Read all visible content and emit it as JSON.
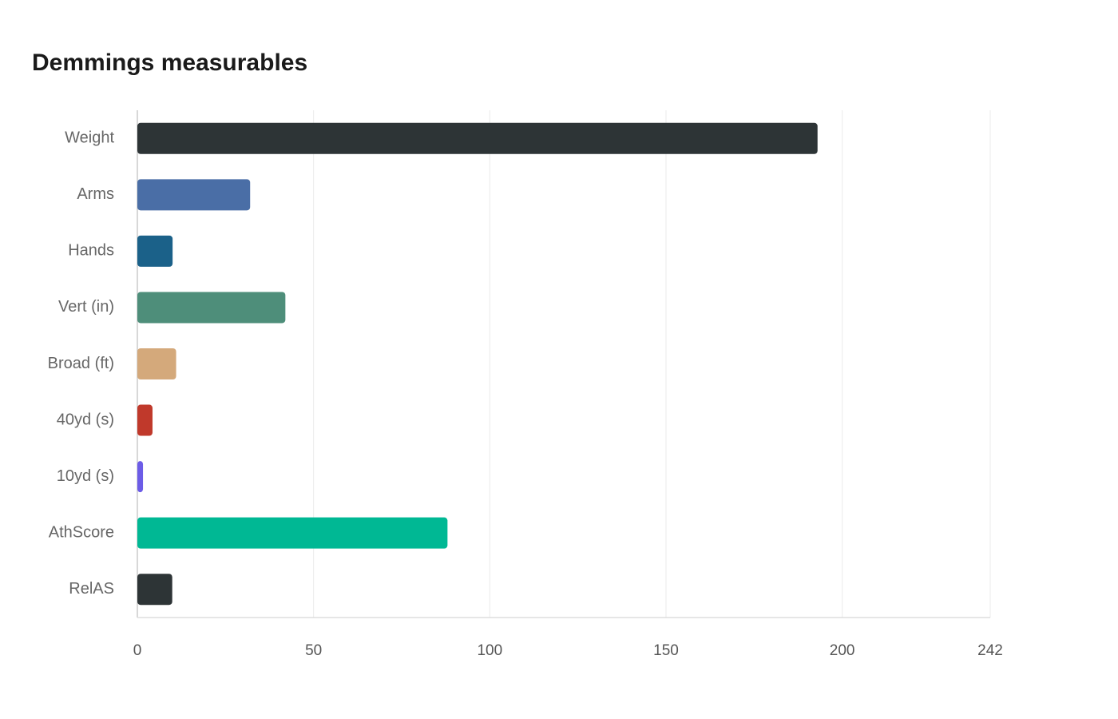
{
  "chart_data": {
    "type": "bar",
    "orientation": "horizontal",
    "title": "Demmings measurables",
    "categories": [
      "Weight",
      "Arms",
      "Hands",
      "Vert (in)",
      "Broad (ft)",
      "40yd (s)",
      "10yd (s)",
      "AthScore",
      "RelAS"
    ],
    "values": [
      193,
      32,
      10,
      42,
      11,
      4.3,
      1.6,
      88,
      9.9
    ],
    "colors": [
      "#2d3436",
      "#4a6ea6",
      "#1b6189",
      "#4e8e7a",
      "#d4a97b",
      "#c0392b",
      "#6c5ce7",
      "#00b894",
      "#2d3436"
    ],
    "xlim": [
      0,
      242
    ],
    "xticks": [
      0,
      50,
      100,
      150,
      200,
      242
    ],
    "grid": true
  }
}
